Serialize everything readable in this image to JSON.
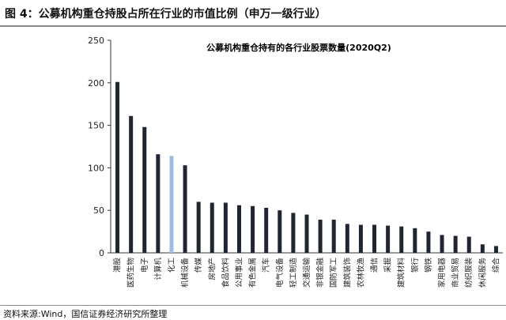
{
  "header": {
    "figure_title": "图 4：公募机构重仓持股占所在行业的市值比例（申万一级行业）"
  },
  "footer": {
    "source": "资料来源:Wind，国信证券经济研究所整理"
  },
  "chart_data": {
    "type": "bar",
    "title": "公募机构重仓持有的各行业股票数量(2020Q2)",
    "xlabel": "",
    "ylabel": "",
    "ylim": [
      0,
      250
    ],
    "yticks": [
      0,
      50,
      100,
      150,
      200,
      250
    ],
    "grid": false,
    "legend": "none",
    "bar_color": "#1f2533",
    "highlight_color": "#9dbfdf",
    "highlight_category": "化工",
    "categories": [
      "港股",
      "医药生物",
      "电子",
      "计算机",
      "化工",
      "机械设备",
      "传媒",
      "房地产",
      "食品饮料",
      "公用事业",
      "有色金属",
      "汽车",
      "电气设备",
      "轻工制造",
      "交通运输",
      "非银金融",
      "国防军工",
      "建筑装饰",
      "农林牧渔",
      "通信",
      "采掘",
      "建筑材料",
      "银行",
      "钢铁",
      "家用电器",
      "商业贸易",
      "纺织服装",
      "休闲服务",
      "综合"
    ],
    "values": [
      201,
      161,
      148,
      116,
      114,
      103,
      60,
      59,
      59,
      56,
      55,
      53,
      50,
      47,
      45,
      39,
      39,
      34,
      33,
      33,
      32,
      31,
      29,
      25,
      21,
      20,
      19,
      10,
      8
    ]
  }
}
